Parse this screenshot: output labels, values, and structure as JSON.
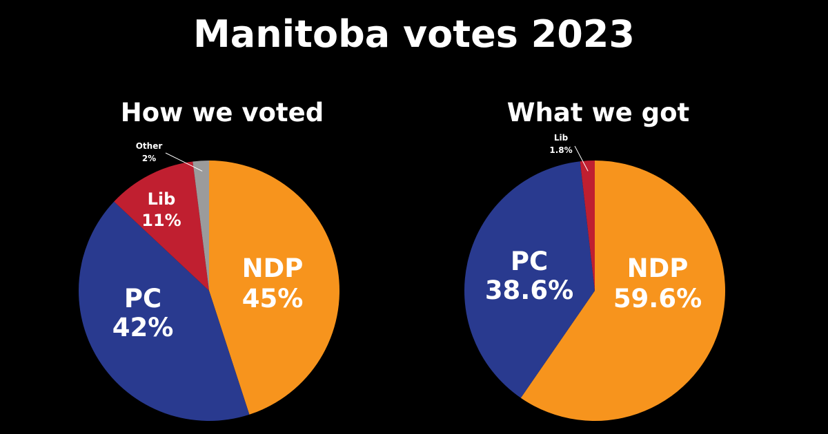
{
  "title": "Manitoba votes 2023",
  "colors": {
    "NDP": "#f7941d",
    "PC": "#293a8f",
    "Lib": "#c01f30",
    "Other": "#9b9b9b",
    "background": "#000000",
    "text": "#ffffff"
  },
  "chart_data": [
    {
      "type": "pie",
      "title": "How we voted",
      "slices": [
        {
          "name": "NDP",
          "label": "NDP",
          "value": 45,
          "value_label": "45%",
          "color": "#f7941d"
        },
        {
          "name": "PC",
          "label": "PC",
          "value": 42,
          "value_label": "42%",
          "color": "#293a8f"
        },
        {
          "name": "Lib",
          "label": "Lib",
          "value": 11,
          "value_label": "11%",
          "color": "#c01f30"
        },
        {
          "name": "Other",
          "label": "Other",
          "value": 2,
          "value_label": "2%",
          "color": "#9b9b9b"
        }
      ]
    },
    {
      "type": "pie",
      "title": "What we got",
      "slices": [
        {
          "name": "NDP",
          "label": "NDP",
          "value": 59.6,
          "value_label": "59.6%",
          "color": "#f7941d"
        },
        {
          "name": "PC",
          "label": "PC",
          "value": 38.6,
          "value_label": "38.6%",
          "color": "#293a8f"
        },
        {
          "name": "Lib",
          "label": "Lib",
          "value": 1.8,
          "value_label": "1.8%",
          "color": "#c01f30"
        }
      ]
    }
  ]
}
